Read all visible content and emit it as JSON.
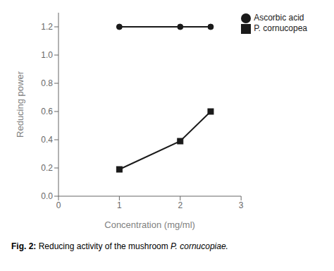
{
  "chart_data": {
    "type": "line",
    "x": [
      1,
      2,
      2.5
    ],
    "series": [
      {
        "name": "Ascorbic acid",
        "color": "#1a1a1a",
        "marker": "circle",
        "values": [
          1.2,
          1.2,
          1.2
        ]
      },
      {
        "name": "P. cornucopea",
        "color": "#1a1a1a",
        "marker": "square",
        "values": [
          0.19,
          0.39,
          0.6
        ]
      }
    ],
    "x_label": "Concentration (mg/ml)",
    "y_label": "Reducing power",
    "xlim": [
      0,
      3
    ],
    "ylim": [
      0,
      1.3
    ],
    "xticks": [
      0,
      1,
      2,
      3
    ],
    "yticks": [
      {
        "value": 0,
        "label": "0.0"
      },
      0.2,
      0.4,
      0.6,
      0.8,
      {
        "value": 1.0,
        "label": "1.0"
      },
      1.2
    ],
    "legend": "upper right",
    "grid": false,
    "annotations": [
      "Fig. 2: ",
      "Reducing activity of the mushroom ",
      "P. cornucopiae."
    ]
  }
}
